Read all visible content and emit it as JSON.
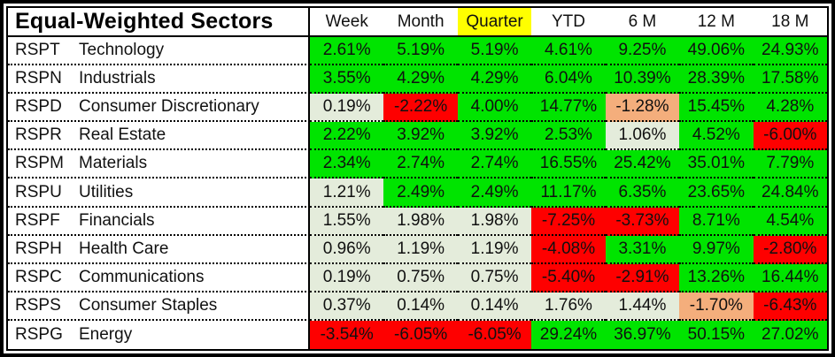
{
  "chart_data": {
    "type": "heatmap",
    "title": "Equal-Weighted Sectors",
    "columns": [
      "Week",
      "Month",
      "Quarter",
      "YTD",
      "6 M",
      "12 M",
      "18 M"
    ],
    "highlighted_column": "Quarter",
    "highlighted_column_index": 2,
    "value_format": "percent_2dp",
    "rows": [
      {
        "ticker": "RSPT",
        "sector": "Technology",
        "values_pct": [
          2.61,
          5.19,
          5.19,
          4.61,
          9.25,
          49.06,
          24.93
        ],
        "tones": [
          "gain",
          "gain",
          "gain",
          "gain",
          "gain",
          "gain",
          "gain"
        ]
      },
      {
        "ticker": "RSPN",
        "sector": "Industrials",
        "values_pct": [
          3.55,
          4.29,
          4.29,
          6.04,
          10.39,
          28.39,
          17.58
        ],
        "tones": [
          "gain",
          "gain",
          "gain",
          "gain",
          "gain",
          "gain",
          "gain"
        ]
      },
      {
        "ticker": "RSPD",
        "sector": "Consumer Discretionary",
        "values_pct": [
          0.19,
          -2.22,
          4.0,
          14.77,
          -1.28,
          15.45,
          4.28
        ],
        "tones": [
          "flat",
          "loss",
          "gain",
          "gain",
          "mild_loss",
          "gain",
          "gain"
        ]
      },
      {
        "ticker": "RSPR",
        "sector": "Real Estate",
        "values_pct": [
          2.22,
          3.92,
          3.92,
          2.53,
          1.06,
          4.52,
          -6.0
        ],
        "tones": [
          "gain",
          "gain",
          "gain",
          "gain",
          "flat",
          "gain",
          "loss"
        ]
      },
      {
        "ticker": "RSPM",
        "sector": "Materials",
        "values_pct": [
          2.34,
          2.74,
          2.74,
          16.55,
          25.42,
          35.01,
          7.79
        ],
        "tones": [
          "gain",
          "gain",
          "gain",
          "gain",
          "gain",
          "gain",
          "gain"
        ]
      },
      {
        "ticker": "RSPU",
        "sector": "Utilities",
        "values_pct": [
          1.21,
          2.49,
          2.49,
          11.17,
          6.35,
          23.65,
          24.84
        ],
        "tones": [
          "flat",
          "gain",
          "gain",
          "gain",
          "gain",
          "gain",
          "gain"
        ]
      },
      {
        "ticker": "RSPF",
        "sector": "Financials",
        "values_pct": [
          1.55,
          1.98,
          1.98,
          -7.25,
          -3.73,
          8.71,
          4.54
        ],
        "tones": [
          "flat",
          "flat",
          "flat",
          "loss",
          "loss",
          "gain",
          "gain"
        ]
      },
      {
        "ticker": "RSPH",
        "sector": "Health Care",
        "values_pct": [
          0.96,
          1.19,
          1.19,
          -4.08,
          3.31,
          9.97,
          -2.8
        ],
        "tones": [
          "flat",
          "flat",
          "flat",
          "loss",
          "gain",
          "gain",
          "loss"
        ]
      },
      {
        "ticker": "RSPC",
        "sector": "Communications",
        "values_pct": [
          0.19,
          0.75,
          0.75,
          -5.4,
          -2.91,
          13.26,
          16.44
        ],
        "tones": [
          "flat",
          "flat",
          "flat",
          "loss",
          "loss",
          "gain",
          "gain"
        ]
      },
      {
        "ticker": "RSPS",
        "sector": "Consumer Staples",
        "values_pct": [
          0.37,
          0.14,
          0.14,
          1.76,
          1.44,
          -1.7,
          -6.43
        ],
        "tones": [
          "flat",
          "flat",
          "flat",
          "flat",
          "flat",
          "mild_loss",
          "loss"
        ]
      },
      {
        "ticker": "RSPG",
        "sector": "Energy",
        "values_pct": [
          -3.54,
          -6.05,
          -6.05,
          29.24,
          36.97,
          50.15,
          27.02
        ],
        "tones": [
          "loss",
          "loss",
          "loss",
          "gain",
          "gain",
          "gain",
          "gain"
        ]
      }
    ]
  },
  "colors": {
    "gain": "#00e400",
    "loss": "#fe0000",
    "flat": "#e4ecdb",
    "mild_loss": "#f4ae7c",
    "column_highlight": "#ffff00",
    "border": "#000000",
    "text": "#111111"
  }
}
